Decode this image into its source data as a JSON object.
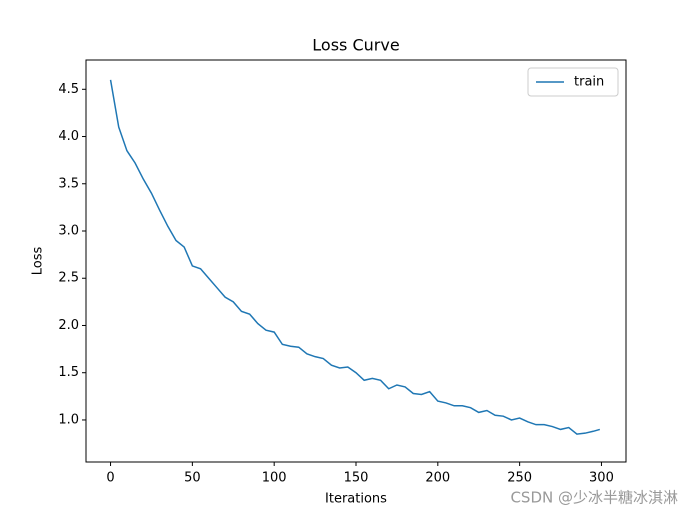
{
  "chart_data": {
    "type": "line",
    "title": "Loss Curve",
    "xlabel": "Iterations",
    "ylabel": "Loss",
    "x": [
      0,
      5,
      10,
      15,
      20,
      25,
      30,
      35,
      40,
      45,
      50,
      55,
      60,
      65,
      70,
      75,
      80,
      85,
      90,
      95,
      100,
      105,
      110,
      115,
      120,
      125,
      130,
      135,
      140,
      145,
      150,
      155,
      160,
      165,
      170,
      175,
      180,
      185,
      190,
      195,
      200,
      205,
      210,
      215,
      220,
      225,
      230,
      235,
      240,
      245,
      250,
      255,
      260,
      265,
      270,
      275,
      280,
      285,
      290,
      295,
      299
    ],
    "series": [
      {
        "name": "train",
        "color": "#1f77b4",
        "values": [
          4.6,
          4.1,
          3.85,
          3.72,
          3.55,
          3.4,
          3.22,
          3.05,
          2.9,
          2.83,
          2.63,
          2.6,
          2.5,
          2.4,
          2.3,
          2.25,
          2.15,
          2.12,
          2.02,
          1.95,
          1.93,
          1.8,
          1.78,
          1.77,
          1.7,
          1.67,
          1.65,
          1.58,
          1.55,
          1.56,
          1.5,
          1.42,
          1.44,
          1.42,
          1.33,
          1.37,
          1.35,
          1.28,
          1.27,
          1.3,
          1.2,
          1.18,
          1.15,
          1.15,
          1.13,
          1.08,
          1.1,
          1.05,
          1.04,
          1.0,
          1.02,
          0.98,
          0.95,
          0.95,
          0.93,
          0.9,
          0.92,
          0.85,
          0.86,
          0.88,
          0.9
        ]
      }
    ],
    "xlim": [
      -15,
      315
    ],
    "xticks": [
      0,
      50,
      100,
      150,
      200,
      250,
      300
    ],
    "ylim": [
      0.555,
      4.81
    ],
    "yticks": [
      {
        "value": 1,
        "label": "1.0"
      },
      1.5,
      {
        "value": 2,
        "label": "2.0"
      },
      2.5,
      {
        "value": 3,
        "label": "3.0"
      },
      3.5,
      {
        "value": 4,
        "label": "4.0"
      },
      4.5
    ],
    "legend": "upper right",
    "watermark": "CSDN @少冰半糖冰淇淋"
  }
}
